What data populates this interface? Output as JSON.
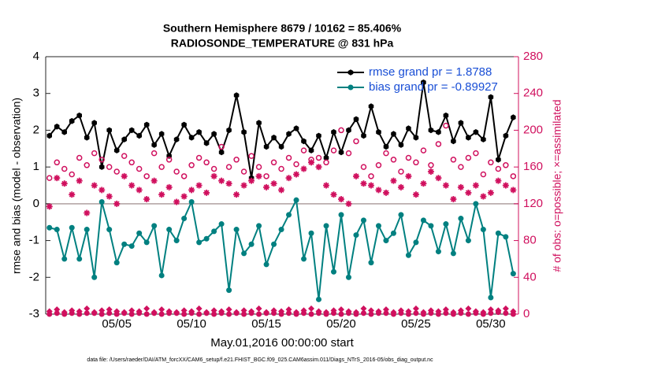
{
  "chart_data": {
    "type": "line",
    "title": "Southern Hemisphere 8679 / 10162 = 85.406%",
    "subtitle": "RADIOSONDE_TEMPERATURE @ 831 hPa",
    "xlabel": "May.01,2016 00:00:00 start",
    "ylabel": "rmse and bias (model - observation)",
    "y2label": "# of obs: o=possible; ×=assimilated",
    "footnote": "data file: /Users/raeder/DAI/ATM_forcXX/CAM6_setup/f.e21.FHIST_BGC.f09_025.CAM6assim.011/Diags_NTrS_2016-05/obs_diag_output.nc",
    "legend": "top-right",
    "xlim": [
      0.25,
      31.85
    ],
    "xticks": [
      {
        "value": 5,
        "label": "05/05"
      },
      {
        "value": 10,
        "label": "05/10"
      },
      {
        "value": 15,
        "label": "05/15"
      },
      {
        "value": 20,
        "label": "05/20"
      },
      {
        "value": 25,
        "label": "05/25"
      },
      {
        "value": 30,
        "label": "05/30"
      }
    ],
    "ylim": [
      -3,
      4
    ],
    "yticks": [
      -3,
      -2,
      -1,
      0,
      1,
      2,
      3,
      4
    ],
    "y2lim": [
      0,
      280
    ],
    "y2ticks": [
      0,
      40,
      80,
      120,
      160,
      200,
      240,
      280
    ],
    "x": [
      0.5,
      1,
      1.5,
      2,
      2.5,
      3,
      3.5,
      4,
      4.5,
      5,
      5.5,
      6,
      6.5,
      7,
      7.5,
      8,
      8.5,
      9,
      9.5,
      10,
      10.5,
      11,
      11.5,
      12,
      12.5,
      13,
      13.5,
      14,
      14.5,
      15,
      15.5,
      16,
      16.5,
      17,
      17.5,
      18,
      18.5,
      19,
      19.5,
      20,
      20.5,
      21,
      21.5,
      22,
      22.5,
      23,
      23.5,
      24,
      24.5,
      25,
      25.5,
      26,
      26.5,
      27,
      27.5,
      28,
      28.5,
      29,
      29.5,
      30,
      30.5,
      31,
      31.5
    ],
    "series": [
      {
        "name": "rmse grand pr = 1.8788",
        "color": "#000000",
        "marker": "hex",
        "line": true,
        "axis": "y",
        "values": [
          1.85,
          2.1,
          1.95,
          2.25,
          2.4,
          1.8,
          2.2,
          1.0,
          2.0,
          1.45,
          1.75,
          2.0,
          1.85,
          2.15,
          1.6,
          1.9,
          1.3,
          1.75,
          2.15,
          1.8,
          1.95,
          1.65,
          1.9,
          1.4,
          2.0,
          2.95,
          1.95,
          0.7,
          2.2,
          1.55,
          1.8,
          1.55,
          1.9,
          2.05,
          1.7,
          1.45,
          1.85,
          1.25,
          1.95,
          1.4,
          2.0,
          2.3,
          1.85,
          2.65,
          1.95,
          1.55,
          1.9,
          1.6,
          2.05,
          1.8,
          3.3,
          2.0,
          1.95,
          2.4,
          1.7,
          2.2,
          1.8,
          1.95,
          1.75,
          2.9,
          1.2,
          1.85,
          2.35
        ]
      },
      {
        "name": "bias grand pr = -0.89927",
        "color": "#008080",
        "marker": "circle",
        "line": true,
        "axis": "y",
        "values": [
          -0.65,
          -0.7,
          -1.5,
          -0.65,
          -1.5,
          -0.7,
          -2.0,
          0.05,
          -0.7,
          -1.6,
          -1.1,
          -1.15,
          -0.8,
          -1.05,
          -0.6,
          -1.95,
          -0.7,
          -1.0,
          -0.4,
          0.05,
          -1.05,
          -0.95,
          -0.75,
          -0.55,
          -2.35,
          -0.7,
          -1.35,
          -1.1,
          -0.6,
          -1.65,
          -1.1,
          -0.7,
          -0.3,
          0.1,
          -1.5,
          -0.8,
          -2.6,
          -0.6,
          -1.85,
          -0.3,
          -2.0,
          -0.85,
          -0.45,
          -1.6,
          -0.6,
          -1.0,
          -0.8,
          -0.3,
          -1.4,
          -1.05,
          -0.45,
          -0.6,
          -1.3,
          -0.55,
          -1.35,
          -0.4,
          -1.0,
          0.0,
          -0.7,
          -2.55,
          -0.8,
          -0.9,
          -1.9
        ]
      },
      {
        "color": "#d0105e",
        "marker": "open-circle",
        "line": false,
        "axis": "y2",
        "values": [
          148,
          165,
          158,
          152,
          170,
          162,
          175,
          168,
          160,
          155,
          172,
          165,
          158,
          150,
          175,
          160,
          168,
          155,
          150,
          162,
          170,
          165,
          158,
          182,
          160,
          168,
          155,
          172,
          160,
          150,
          165,
          158,
          170,
          163,
          178,
          168,
          170,
          165,
          178,
          200,
          175,
          188,
          160,
          150,
          162,
          175,
          168,
          155,
          170,
          165,
          178,
          162,
          185,
          205,
          168,
          160,
          170,
          175,
          152,
          165,
          158,
          162,
          150
        ]
      },
      {
        "color": "#d0105e",
        "marker": "star",
        "line": false,
        "axis": "y2",
        "values": [
          117,
          148,
          142,
          130,
          145,
          110,
          140,
          135,
          128,
          120,
          150,
          140,
          135,
          125,
          145,
          130,
          138,
          122,
          128,
          135,
          140,
          132,
          150,
          145,
          142,
          130,
          140,
          145,
          150,
          138,
          142,
          135,
          148,
          152,
          158,
          165,
          160,
          140,
          130,
          125,
          120,
          150,
          142,
          140,
          135,
          132,
          145,
          138,
          150,
          130,
          142,
          155,
          148,
          140,
          125,
          138,
          132,
          140,
          128,
          132,
          145,
          140,
          135
        ]
      },
      {
        "color": "#d0105e",
        "marker": "circle",
        "line": false,
        "axis": "y2",
        "values": [
          0,
          1,
          0,
          1,
          0,
          1,
          1,
          0,
          1,
          0,
          1,
          0,
          1,
          0,
          1,
          0,
          1,
          1,
          0,
          1,
          0,
          1,
          0,
          1,
          0,
          1,
          0,
          1,
          0,
          1,
          1,
          0,
          1,
          0,
          1,
          0,
          1,
          0,
          1,
          0,
          1,
          0,
          1,
          0,
          1,
          1,
          0,
          1,
          0,
          1,
          0,
          1,
          0,
          1,
          0,
          1,
          0,
          1,
          0,
          1,
          2,
          1,
          0
        ]
      },
      {
        "color": "#d0105e",
        "marker": "diamond",
        "line": false,
        "axis": "y2",
        "values": [
          3,
          5,
          2,
          4,
          3,
          6,
          2,
          4,
          5,
          3,
          2,
          4,
          3,
          6,
          2,
          5,
          3,
          2,
          4,
          3,
          6,
          2,
          4,
          3,
          5,
          2,
          4,
          3,
          6,
          2,
          4,
          3,
          5,
          2,
          4,
          6,
          3,
          2,
          4,
          5,
          3,
          2,
          6,
          4,
          3,
          5,
          2,
          4,
          3,
          6,
          2,
          4,
          3,
          5,
          2,
          4,
          6,
          3,
          2,
          5,
          4,
          6,
          3
        ]
      }
    ]
  }
}
